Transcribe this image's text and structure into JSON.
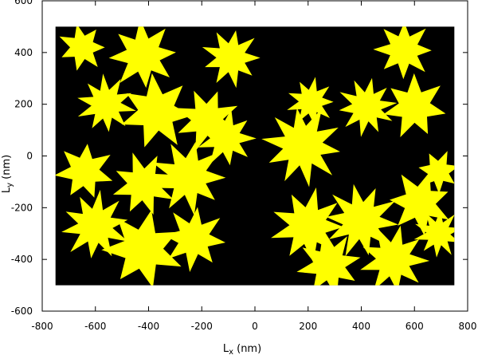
{
  "chart_data": {
    "type": "heatmap",
    "xlabel": "L",
    "xlabel_sub": "x",
    "xlabel_unit": "(nm)",
    "ylabel": "L",
    "ylabel_sub": "y",
    "ylabel_unit": "(nm)",
    "xlim": [
      -800,
      800
    ],
    "ylim": [
      -600,
      600
    ],
    "xticks": [
      -800,
      -600,
      -400,
      -200,
      0,
      200,
      400,
      600,
      800
    ],
    "yticks": [
      -600,
      -400,
      -200,
      0,
      200,
      400,
      600
    ],
    "domain": {
      "x": [
        -750,
        750
      ],
      "y": [
        -500,
        500
      ]
    },
    "colors": {
      "background": "#000000",
      "grains": "#ffff00",
      "frame": "#000000"
    },
    "grain_centers_nm": [
      {
        "x": -650,
        "y": 420,
        "r": 90
      },
      {
        "x": -420,
        "y": 390,
        "r": 130
      },
      {
        "x": -90,
        "y": 380,
        "r": 110
      },
      {
        "x": -560,
        "y": 200,
        "r": 110
      },
      {
        "x": -370,
        "y": 170,
        "r": 140
      },
      {
        "x": -180,
        "y": 140,
        "r": 120
      },
      {
        "x": 210,
        "y": 210,
        "r": 90
      },
      {
        "x": 420,
        "y": 190,
        "r": 110
      },
      {
        "x": 600,
        "y": 190,
        "r": 120
      },
      {
        "x": 560,
        "y": 410,
        "r": 110
      },
      {
        "x": -110,
        "y": 70,
        "r": 110
      },
      {
        "x": 180,
        "y": 40,
        "r": 150
      },
      {
        "x": -640,
        "y": -60,
        "r": 110
      },
      {
        "x": -420,
        "y": -110,
        "r": 120
      },
      {
        "x": -250,
        "y": -80,
        "r": 140
      },
      {
        "x": -600,
        "y": -270,
        "r": 130
      },
      {
        "x": -420,
        "y": -360,
        "r": 150
      },
      {
        "x": -230,
        "y": -320,
        "r": 120
      },
      {
        "x": 200,
        "y": -270,
        "r": 140
      },
      {
        "x": 400,
        "y": -250,
        "r": 140
      },
      {
        "x": 620,
        "y": -180,
        "r": 120
      },
      {
        "x": 280,
        "y": -420,
        "r": 120
      },
      {
        "x": 520,
        "y": -400,
        "r": 130
      },
      {
        "x": 690,
        "y": -300,
        "r": 90
      },
      {
        "x": 690,
        "y": -60,
        "r": 80
      }
    ]
  }
}
